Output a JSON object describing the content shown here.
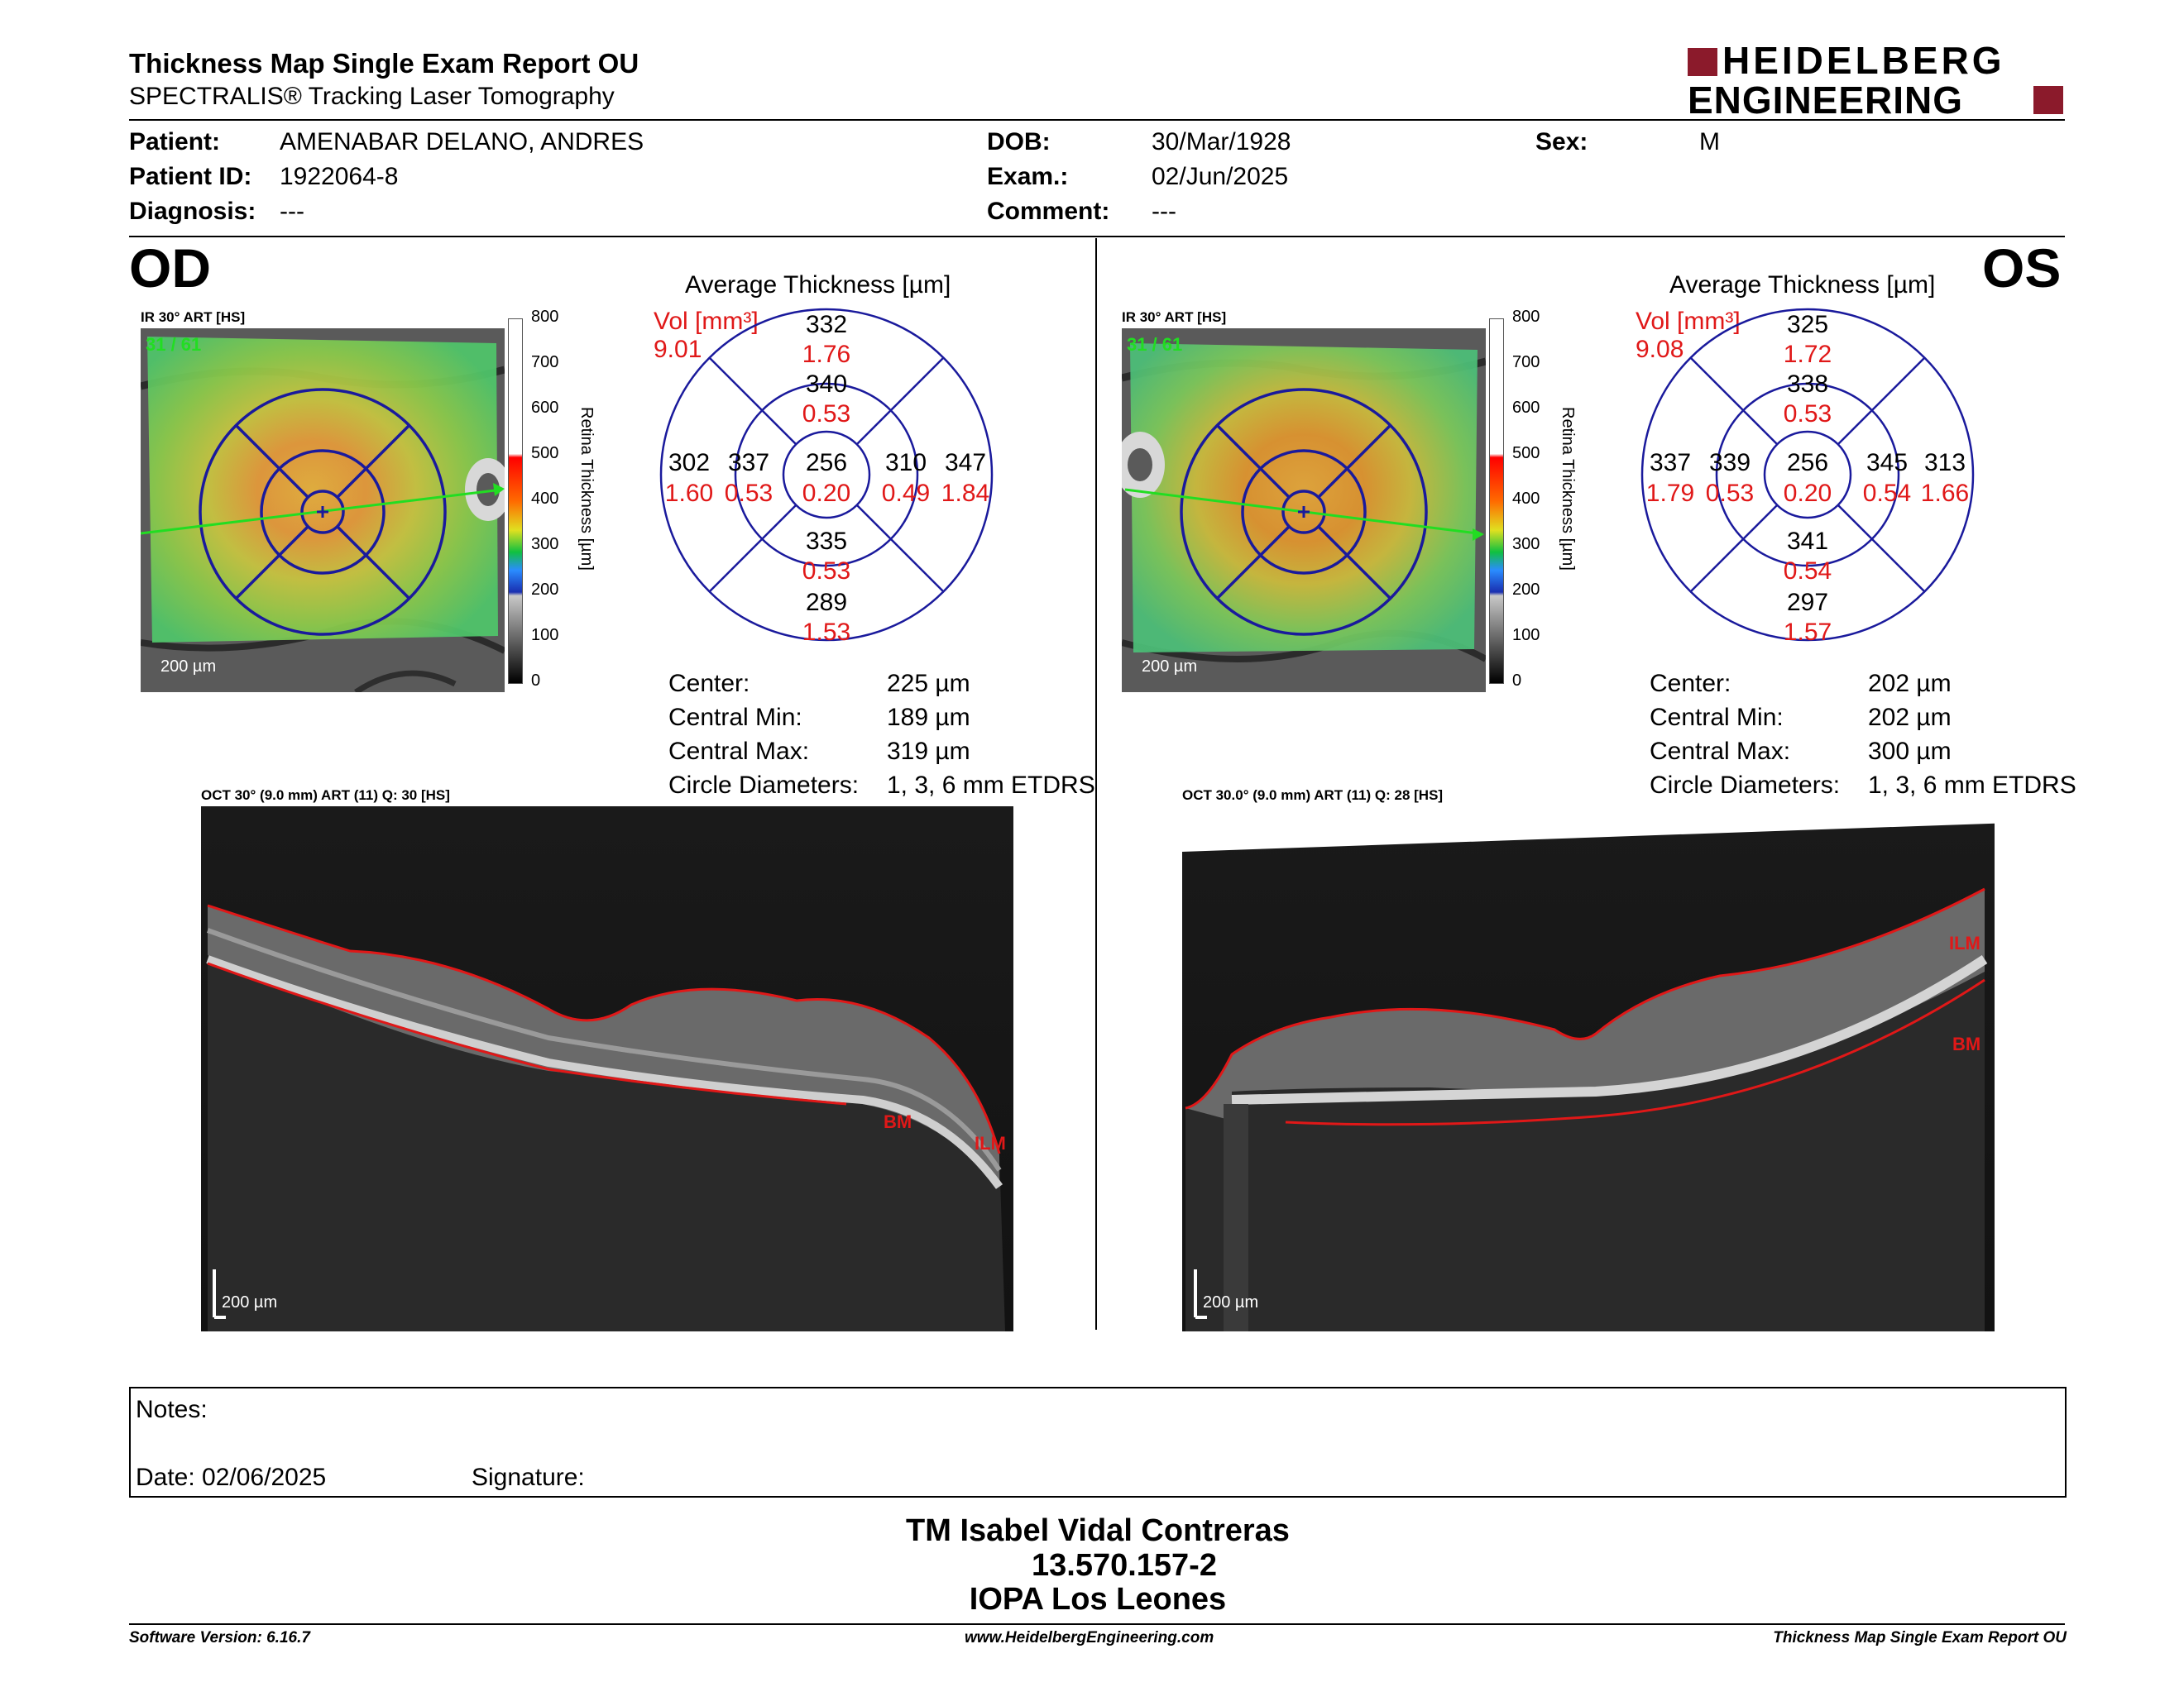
{
  "header": {
    "title": "Thickness Map Single Exam Report OU",
    "subtitle": "SPECTRALIS® Tracking Laser Tomography",
    "brand_line1": "HEIDELBERG",
    "brand_line2": "ENGINEERING"
  },
  "patient": {
    "patient_label": "Patient:",
    "patient_value": "AMENABAR DELANO, ANDRES",
    "id_label": "Patient ID:",
    "id_value": "1922064-8",
    "diagnosis_label": "Diagnosis:",
    "diagnosis_value": "---",
    "dob_label": "DOB:",
    "dob_value": "30/Mar/1928",
    "exam_label": "Exam.:",
    "exam_value": "02/Jun/2025",
    "comment_label": "Comment:",
    "comment_value": "---",
    "sex_label": "Sex:",
    "sex_value": "M"
  },
  "colors": {
    "accent_red": "#e01818",
    "brand_red": "#8b1a2b",
    "grid_blue": "#1a1a9c",
    "scan_line": "#22dd22"
  },
  "colorbar": {
    "ticks": [
      "800",
      "700",
      "600",
      "500",
      "400",
      "300",
      "200",
      "100",
      "0"
    ],
    "label": "Retina Thickness [µm]"
  },
  "od": {
    "eye": "OD",
    "ir_label": "IR 30° ART [HS]",
    "frames": "31 / 61",
    "scale": "200 µm",
    "avg_title": "Average Thickness [µm]",
    "vol_label": "Vol [mm³]",
    "vol_value": "9.01",
    "grid": {
      "center": {
        "t": "256",
        "v": "0.20"
      },
      "inner_sup": {
        "t": "340",
        "v": "0.53"
      },
      "inner_inf": {
        "t": "335",
        "v": "0.53"
      },
      "inner_left": {
        "t": "337",
        "v": "0.53"
      },
      "inner_right": {
        "t": "310",
        "v": "0.49"
      },
      "outer_sup": {
        "t": "332",
        "v": "1.76"
      },
      "outer_inf": {
        "t": "289",
        "v": "1.53"
      },
      "outer_left": {
        "t": "302",
        "v": "1.60"
      },
      "outer_right": {
        "t": "347",
        "v": "1.84"
      }
    },
    "stats": {
      "center_label": "Center:",
      "center_value": "225 µm",
      "min_label": "Central Min:",
      "min_value": "189 µm",
      "max_label": "Central Max:",
      "max_value": "319 µm",
      "circ_label": "Circle Diameters:",
      "circ_value": "1, 3, 6 mm ETDRS"
    },
    "oct_label": "OCT 30° (9.0 mm) ART (11) Q: 30 [HS]",
    "oct_scale": "200 µm",
    "layer_ilm": "ILM",
    "layer_bm": "BM"
  },
  "os": {
    "eye": "OS",
    "ir_label": "IR 30° ART [HS]",
    "frames": "31 / 61",
    "scale": "200 µm",
    "avg_title": "Average Thickness [µm]",
    "vol_label": "Vol [mm³]",
    "vol_value": "9.08",
    "grid": {
      "center": {
        "t": "256",
        "v": "0.20"
      },
      "inner_sup": {
        "t": "338",
        "v": "0.53"
      },
      "inner_inf": {
        "t": "341",
        "v": "0.54"
      },
      "inner_left": {
        "t": "339",
        "v": "0.53"
      },
      "inner_right": {
        "t": "345",
        "v": "0.54"
      },
      "outer_sup": {
        "t": "325",
        "v": "1.72"
      },
      "outer_inf": {
        "t": "297",
        "v": "1.57"
      },
      "outer_left": {
        "t": "337",
        "v": "1.79"
      },
      "outer_right": {
        "t": "313",
        "v": "1.66"
      }
    },
    "stats": {
      "center_label": "Center:",
      "center_value": "202 µm",
      "min_label": "Central Min:",
      "min_value": "202 µm",
      "max_label": "Central Max:",
      "max_value": "300 µm",
      "circ_label": "Circle Diameters:",
      "circ_value": "1, 3, 6 mm ETDRS"
    },
    "oct_label": "OCT 30.0° (9.0 mm) ART (11) Q: 28 [HS]",
    "oct_scale": "200 µm",
    "layer_ilm": "ILM",
    "layer_bm": "BM"
  },
  "notes": {
    "notes_label": "Notes:",
    "date_label": "Date: 02/06/2025",
    "signature_label": "Signature:"
  },
  "signature": {
    "name": "TM Isabel Vidal Contreras",
    "id": "13.570.157-2",
    "place": "IOPA Los Leones"
  },
  "footer": {
    "version": "Software Version: 6.16.7",
    "url": "www.HeidelbergEngineering.com",
    "report": "Thickness Map Single Exam Report OU"
  }
}
